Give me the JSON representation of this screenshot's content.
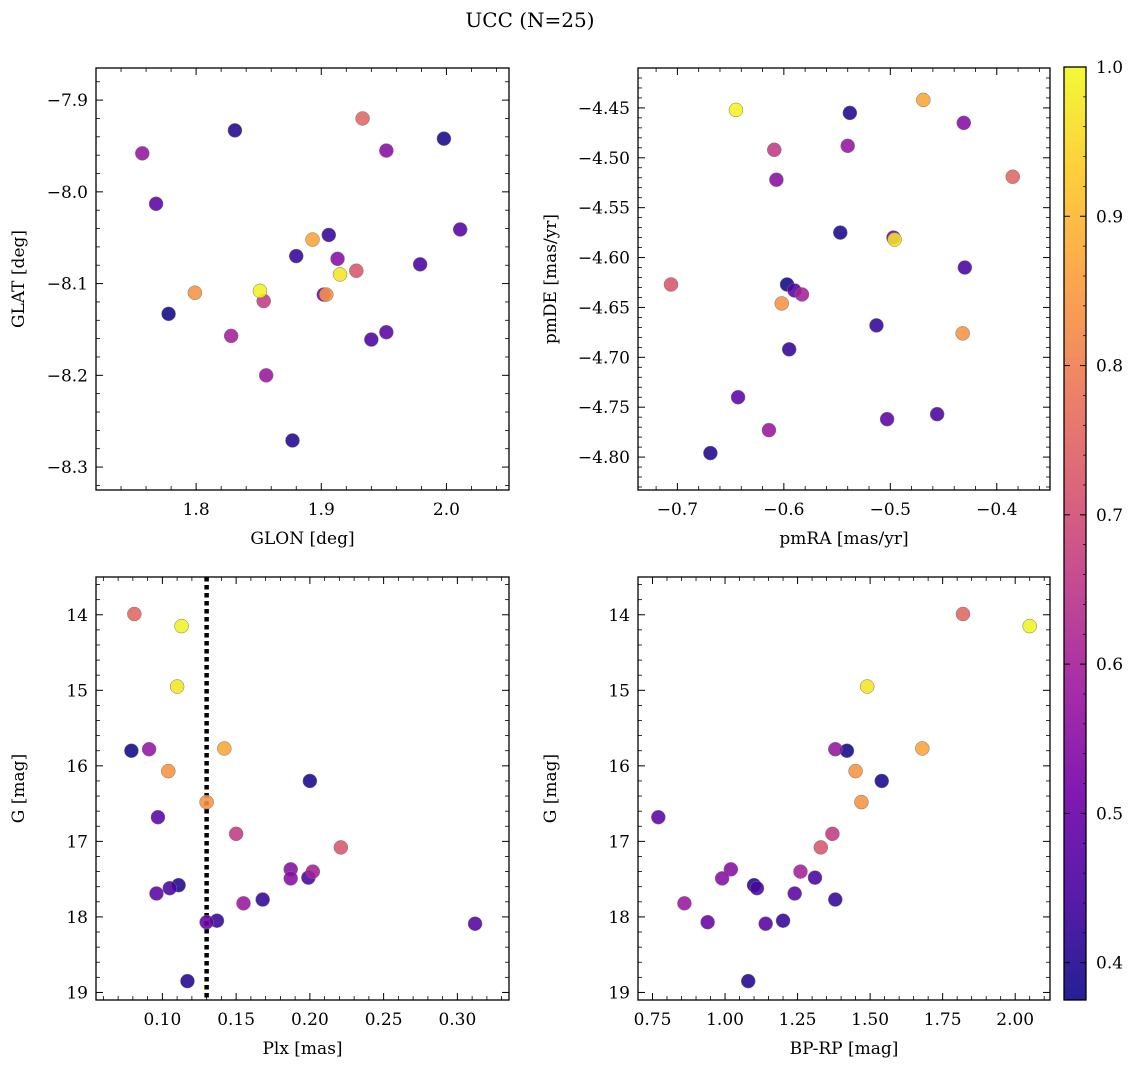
{
  "title": "UCC (N=25)",
  "colormap": {
    "name": "plasma",
    "min": 0.375,
    "max": 1.0,
    "ticks": [
      0.4,
      0.5,
      0.6,
      0.7,
      0.8,
      0.9,
      1.0
    ],
    "tick_labels": [
      "0.4",
      "0.5",
      "0.6",
      "0.7",
      "0.8",
      "0.9",
      "1.0"
    ],
    "stops": [
      "#0d0887",
      "#46039f",
      "#7201a8",
      "#9c179e",
      "#bd3786",
      "#d8576b",
      "#ed7953",
      "#fb9f3a",
      "#fdca26",
      "#f0f921"
    ]
  },
  "members": [
    {
      "glon": 1.757,
      "glat": -7.958,
      "pmra": -0.54,
      "pmde": -4.488,
      "plx": 0.091,
      "g": 15.78,
      "bprp": 1.38,
      "prob": 0.57
    },
    {
      "glon": 1.768,
      "glat": -8.013,
      "pmra": -0.643,
      "pmde": -4.74,
      "plx": 0.097,
      "g": 16.68,
      "bprp": 0.77,
      "prob": 0.48
    },
    {
      "glon": 1.778,
      "glat": -8.133,
      "pmra": -0.597,
      "pmde": -4.627,
      "plx": 0.079,
      "g": 15.8,
      "bprp": 1.42,
      "prob": 0.38
    },
    {
      "glon": 1.799,
      "glat": -8.11,
      "pmra": -0.602,
      "pmde": -4.646,
      "plx": 0.104,
      "g": 16.07,
      "bprp": 1.45,
      "prob": 0.84
    },
    {
      "glon": 1.828,
      "glat": -8.157,
      "pmra": -0.583,
      "pmde": -4.637,
      "plx": 0.202,
      "g": 17.4,
      "bprp": 1.26,
      "prob": 0.6
    },
    {
      "glon": 1.831,
      "glat": -7.933,
      "pmra": -0.538,
      "pmde": -4.455,
      "plx": 0.117,
      "g": 18.85,
      "bprp": 1.08,
      "prob": 0.4
    },
    {
      "glon": 1.851,
      "glat": -8.108,
      "pmra": -0.645,
      "pmde": -4.452,
      "plx": 0.113,
      "g": 14.15,
      "bprp": 2.05,
      "prob": 0.99
    },
    {
      "glon": 1.854,
      "glat": -8.119,
      "pmra": -0.609,
      "pmde": -4.492,
      "plx": 0.15,
      "g": 16.9,
      "bprp": 1.37,
      "prob": 0.66
    },
    {
      "glon": 1.856,
      "glat": -8.2,
      "pmra": -0.614,
      "pmde": -4.773,
      "plx": 0.155,
      "g": 17.82,
      "bprp": 0.86,
      "prob": 0.58
    },
    {
      "glon": 1.877,
      "glat": -8.271,
      "pmra": -0.669,
      "pmde": -4.796,
      "plx": 0.111,
      "g": 17.58,
      "bprp": 1.1,
      "prob": 0.4
    },
    {
      "glon": 1.88,
      "glat": -8.07,
      "pmra": -0.513,
      "pmde": -4.668,
      "plx": 0.168,
      "g": 17.77,
      "bprp": 1.38,
      "prob": 0.42
    },
    {
      "glon": 1.893,
      "glat": -8.052,
      "pmra": -0.469,
      "pmde": -4.442,
      "plx": 0.142,
      "g": 15.77,
      "bprp": 1.68,
      "prob": 0.87
    },
    {
      "glon": 1.902,
      "glat": -8.112,
      "pmra": -0.497,
      "pmde": -4.58,
      "plx": 0.13,
      "g": 18.07,
      "bprp": 0.94,
      "prob": 0.5
    },
    {
      "glon": 1.904,
      "glat": -8.112,
      "pmra": -0.432,
      "pmde": -4.676,
      "plx": 0.13,
      "g": 16.48,
      "bprp": 1.47,
      "prob": 0.84
    },
    {
      "glon": 1.906,
      "glat": -8.047,
      "pmra": -0.595,
      "pmde": -4.692,
      "plx": 0.137,
      "g": 18.05,
      "bprp": 1.2,
      "prob": 0.42
    },
    {
      "glon": 1.913,
      "glat": -8.073,
      "pmra": -0.607,
      "pmde": -4.522,
      "plx": 0.187,
      "g": 17.37,
      "bprp": 1.02,
      "prob": 0.55
    },
    {
      "glon": 1.915,
      "glat": -8.09,
      "pmra": -0.496,
      "pmde": -4.582,
      "plx": 0.11,
      "g": 14.95,
      "bprp": 1.49,
      "prob": 0.97
    },
    {
      "glon": 1.928,
      "glat": -8.086,
      "pmra": -0.706,
      "pmde": -4.627,
      "plx": 0.221,
      "g": 17.08,
      "bprp": 1.33,
      "prob": 0.72
    },
    {
      "glon": 1.933,
      "glat": -7.92,
      "pmra": -0.385,
      "pmde": -4.519,
      "plx": 0.081,
      "g": 13.99,
      "bprp": 1.82,
      "prob": 0.75
    },
    {
      "glon": 1.94,
      "glat": -8.161,
      "pmra": -0.456,
      "pmde": -4.757,
      "plx": 0.105,
      "g": 17.62,
      "bprp": 1.11,
      "prob": 0.45
    },
    {
      "glon": 1.952,
      "glat": -7.955,
      "pmra": -0.431,
      "pmde": -4.465,
      "plx": 0.187,
      "g": 17.49,
      "bprp": 0.99,
      "prob": 0.55
    },
    {
      "glon": 1.952,
      "glat": -8.153,
      "pmra": -0.503,
      "pmde": -4.762,
      "plx": 0.096,
      "g": 17.69,
      "bprp": 1.24,
      "prob": 0.48
    },
    {
      "glon": 1.979,
      "glat": -8.079,
      "pmra": -0.43,
      "pmde": -4.61,
      "plx": 0.199,
      "g": 17.48,
      "bprp": 1.31,
      "prob": 0.45
    },
    {
      "glon": 1.998,
      "glat": -7.942,
      "pmra": -0.547,
      "pmde": -4.575,
      "plx": 0.2,
      "g": 16.2,
      "bprp": 1.54,
      "prob": 0.39
    },
    {
      "glon": 2.011,
      "glat": -8.041,
      "pmra": -0.59,
      "pmde": -4.633,
      "plx": 0.312,
      "g": 18.09,
      "bprp": 1.14,
      "prob": 0.47
    }
  ],
  "chart_data": [
    {
      "type": "scatter",
      "x_field": "glon",
      "y_field": "glat",
      "xlabel": "GLON [deg]",
      "ylabel": "GLAT [deg]",
      "xlim": [
        1.72,
        2.05
      ],
      "ylim": [
        -8.325,
        -7.865
      ],
      "y_inverted": false,
      "xticks": [
        1.8,
        1.9,
        2.0
      ],
      "xticklabels": [
        "1.8",
        "1.9",
        "2.0"
      ],
      "yticks": [
        -7.9,
        -8.0,
        -8.1,
        -8.2,
        -8.3
      ],
      "yticklabels": [
        "−7.9",
        "−8.0",
        "−8.1",
        "−8.2",
        "−8.3"
      ],
      "vline": null
    },
    {
      "type": "scatter",
      "x_field": "pmra",
      "y_field": "pmde",
      "xlabel": "pmRA [mas/yr]",
      "ylabel": "pmDE [mas/yr]",
      "xlim": [
        -0.737,
        -0.35
      ],
      "ylim": [
        -4.833,
        -4.41
      ],
      "y_inverted": false,
      "xticks": [
        -0.7,
        -0.6,
        -0.5,
        -0.4
      ],
      "xticklabels": [
        "−0.7",
        "−0.6",
        "−0.5",
        "−0.4"
      ],
      "yticks": [
        -4.45,
        -4.5,
        -4.55,
        -4.6,
        -4.65,
        -4.7,
        -4.75,
        -4.8
      ],
      "yticklabels": [
        "−4.45",
        "−4.50",
        "−4.55",
        "−4.60",
        "−4.65",
        "−4.70",
        "−4.75",
        "−4.80"
      ],
      "vline": null
    },
    {
      "type": "scatter",
      "x_field": "plx",
      "y_field": "g",
      "xlabel": "Plx [mas]",
      "ylabel": "G [mag]",
      "xlim": [
        0.055,
        0.335
      ],
      "ylim": [
        13.5,
        19.1
      ],
      "y_inverted": true,
      "xticks": [
        0.1,
        0.15,
        0.2,
        0.25,
        0.3
      ],
      "xticklabels": [
        "0.10",
        "0.15",
        "0.20",
        "0.25",
        "0.30"
      ],
      "yticks": [
        14,
        15,
        16,
        17,
        18,
        19
      ],
      "yticklabels": [
        "14",
        "15",
        "16",
        "17",
        "18",
        "19"
      ],
      "vline": 0.13
    },
    {
      "type": "scatter",
      "x_field": "bprp",
      "y_field": "g",
      "xlabel": "BP-RP [mag]",
      "ylabel": "G [mag]",
      "xlim": [
        0.7,
        2.12
      ],
      "ylim": [
        13.5,
        19.1
      ],
      "y_inverted": true,
      "xticks": [
        0.75,
        1.0,
        1.25,
        1.5,
        1.75,
        2.0
      ],
      "xticklabels": [
        "0.75",
        "1.00",
        "1.25",
        "1.50",
        "1.75",
        "2.00"
      ],
      "yticks": [
        14,
        15,
        16,
        17,
        18,
        19
      ],
      "yticklabels": [
        "14",
        "15",
        "16",
        "17",
        "18",
        "19"
      ],
      "vline": null
    }
  ]
}
